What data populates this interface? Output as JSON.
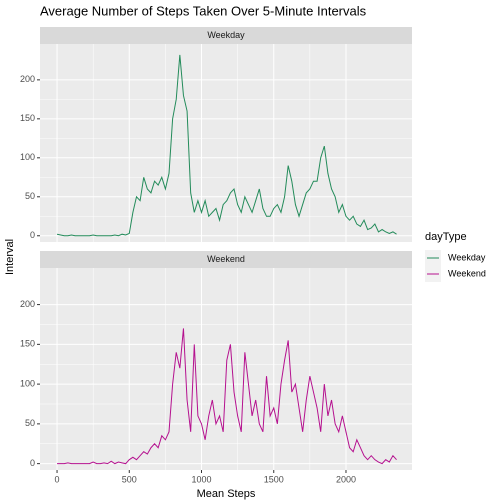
{
  "chart_data": {
    "type": "line",
    "title": "Average Number of Steps Taken Over 5-Minute Intervals",
    "xlabel": "Mean Steps",
    "ylabel": "Interval",
    "legend_title": "dayType",
    "grid": true,
    "x": [
      0,
      25,
      50,
      75,
      100,
      125,
      150,
      175,
      200,
      225,
      250,
      275,
      300,
      325,
      350,
      375,
      400,
      425,
      450,
      475,
      500,
      525,
      550,
      575,
      600,
      625,
      650,
      675,
      700,
      725,
      750,
      775,
      800,
      825,
      850,
      875,
      900,
      925,
      950,
      975,
      1000,
      1025,
      1050,
      1075,
      1100,
      1125,
      1150,
      1175,
      1200,
      1225,
      1250,
      1275,
      1300,
      1325,
      1350,
      1375,
      1400,
      1425,
      1450,
      1475,
      1500,
      1525,
      1550,
      1575,
      1600,
      1625,
      1650,
      1675,
      1700,
      1725,
      1750,
      1775,
      1800,
      1825,
      1850,
      1875,
      1900,
      1925,
      1950,
      1975,
      2000,
      2025,
      2050,
      2075,
      2100,
      2125,
      2150,
      2175,
      2200,
      2225,
      2250,
      2275,
      2300,
      2325,
      2350
    ],
    "series": [
      {
        "name": "Weekday",
        "color": "#238b5a",
        "values": [
          2,
          1,
          0,
          0,
          1,
          0,
          0,
          0,
          0,
          0,
          1,
          0,
          0,
          0,
          0,
          0,
          1,
          0,
          2,
          1,
          3,
          30,
          50,
          45,
          75,
          60,
          55,
          70,
          65,
          75,
          60,
          80,
          150,
          175,
          232,
          180,
          160,
          55,
          30,
          45,
          30,
          45,
          25,
          30,
          35,
          20,
          40,
          45,
          55,
          60,
          40,
          30,
          50,
          40,
          30,
          45,
          60,
          35,
          25,
          25,
          35,
          40,
          30,
          50,
          90,
          70,
          40,
          25,
          40,
          55,
          60,
          70,
          70,
          100,
          115,
          80,
          60,
          50,
          30,
          40,
          25,
          20,
          25,
          15,
          12,
          20,
          8,
          10,
          15,
          5,
          8,
          5,
          3,
          5,
          2
        ]
      },
      {
        "name": "Weekend",
        "color": "#b5118f",
        "values": [
          0,
          0,
          0,
          1,
          0,
          0,
          0,
          0,
          0,
          0,
          2,
          0,
          0,
          1,
          0,
          3,
          0,
          2,
          1,
          0,
          5,
          8,
          5,
          10,
          15,
          12,
          20,
          25,
          20,
          35,
          30,
          40,
          100,
          140,
          120,
          170,
          80,
          40,
          150,
          60,
          50,
          30,
          60,
          80,
          50,
          60,
          40,
          130,
          150,
          90,
          60,
          40,
          140,
          100,
          60,
          80,
          50,
          40,
          110,
          60,
          70,
          50,
          100,
          130,
          155,
          90,
          100,
          70,
          40,
          80,
          110,
          90,
          70,
          40,
          100,
          60,
          80,
          50,
          40,
          60,
          40,
          20,
          15,
          30,
          20,
          10,
          5,
          10,
          5,
          2,
          0,
          5,
          2,
          10,
          5
        ]
      }
    ],
    "xlim": [
      -118,
      2457
    ],
    "xticks": [
      0,
      500,
      1000,
      1500,
      2000
    ],
    "ylim": [
      -8,
      246
    ],
    "yticks": [
      0,
      50,
      100,
      150,
      200
    ]
  }
}
